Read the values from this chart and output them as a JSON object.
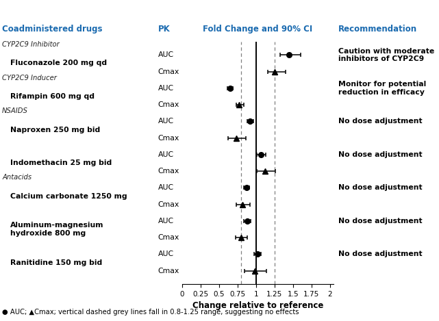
{
  "title_col1": "Coadministered drugs",
  "title_col2": "PK",
  "title_col3": "Fold Change and 90% CI",
  "title_col4": "Recommendation",
  "header_color": "#1B6BB0",
  "categories": [
    {
      "group": "CYP2C9 Inhibitor",
      "drug": "Fluconazole 200 mg qd",
      "pk": "AUC",
      "point": 1.45,
      "lo": 1.33,
      "hi": 1.6,
      "rec": "Caution with moderate\ninhibitors of CYP2C9"
    },
    {
      "group": null,
      "drug": "Fluconazole 200 mg qd",
      "pk": "Cmax",
      "point": 1.25,
      "lo": 1.16,
      "hi": 1.4,
      "rec": null
    },
    {
      "group": "CYP2C9 Inducer",
      "drug": "Rifampin 600 mg qd",
      "pk": "AUC",
      "point": 0.65,
      "lo": 0.61,
      "hi": 0.69,
      "rec": "Monitor for potential\nreduction in efficacy"
    },
    {
      "group": null,
      "drug": "Rifampin 600 mg qd",
      "pk": "Cmax",
      "point": 0.77,
      "lo": 0.73,
      "hi": 0.83,
      "rec": null
    },
    {
      "group": "NSAIDS",
      "drug": "Naproxen 250 mg bid",
      "pk": "AUC",
      "point": 0.92,
      "lo": 0.88,
      "hi": 0.96,
      "rec": "No dose adjustment"
    },
    {
      "group": null,
      "drug": "Naproxen 250 mg bid",
      "pk": "Cmax",
      "point": 0.73,
      "lo": 0.62,
      "hi": 0.86,
      "rec": null
    },
    {
      "group": null,
      "drug": "Indomethacin 25 mg bid",
      "pk": "AUC",
      "point": 1.07,
      "lo": 1.01,
      "hi": 1.13,
      "rec": "No dose adjustment"
    },
    {
      "group": null,
      "drug": "Indomethacin 25 mg bid",
      "pk": "Cmax",
      "point": 1.12,
      "lo": 1.01,
      "hi": 1.26,
      "rec": null
    },
    {
      "group": "Antacids",
      "drug": "Calcium carbonate 1250 mg",
      "pk": "AUC",
      "point": 0.87,
      "lo": 0.83,
      "hi": 0.91,
      "rec": "No dose adjustment"
    },
    {
      "group": null,
      "drug": "Calcium carbonate 1250 mg",
      "pk": "Cmax",
      "point": 0.82,
      "lo": 0.73,
      "hi": 0.92,
      "rec": null
    },
    {
      "group": null,
      "drug": "Aluminum-magnesium\nhydroxide 800 mg",
      "pk": "AUC",
      "point": 0.88,
      "lo": 0.83,
      "hi": 0.93,
      "rec": "No dose adjustment"
    },
    {
      "group": null,
      "drug": "Aluminum-magnesium\nhydroxide 800 mg",
      "pk": "Cmax",
      "point": 0.8,
      "lo": 0.72,
      "hi": 0.88,
      "rec": null
    },
    {
      "group": null,
      "drug": "Ranitidine 150 mg bid",
      "pk": "AUC",
      "point": 1.02,
      "lo": 0.97,
      "hi": 1.07,
      "rec": "No dose adjustment"
    },
    {
      "group": null,
      "drug": "Ranitidine 150 mg bid",
      "pk": "Cmax",
      "point": 0.98,
      "lo": 0.84,
      "hi": 1.14,
      "rec": null
    }
  ],
  "xlim": [
    0,
    2.05
  ],
  "xticks": [
    0,
    0.25,
    0.5,
    0.75,
    1.0,
    1.25,
    1.5,
    1.75,
    2.0
  ],
  "xtick_labels": [
    "0",
    "0.25",
    "0.5",
    "0.75",
    "1",
    "1.25",
    "1.5",
    "1.75",
    "2"
  ],
  "xlabel": "Change relative to reference",
  "vline_solid": 1.0,
  "vlines_dashed": [
    0.8,
    1.25
  ],
  "footnote": "● AUC; ▲Cmax; vertical dashed grey lines fall in 0.8-1.25 range, suggesting no effects"
}
